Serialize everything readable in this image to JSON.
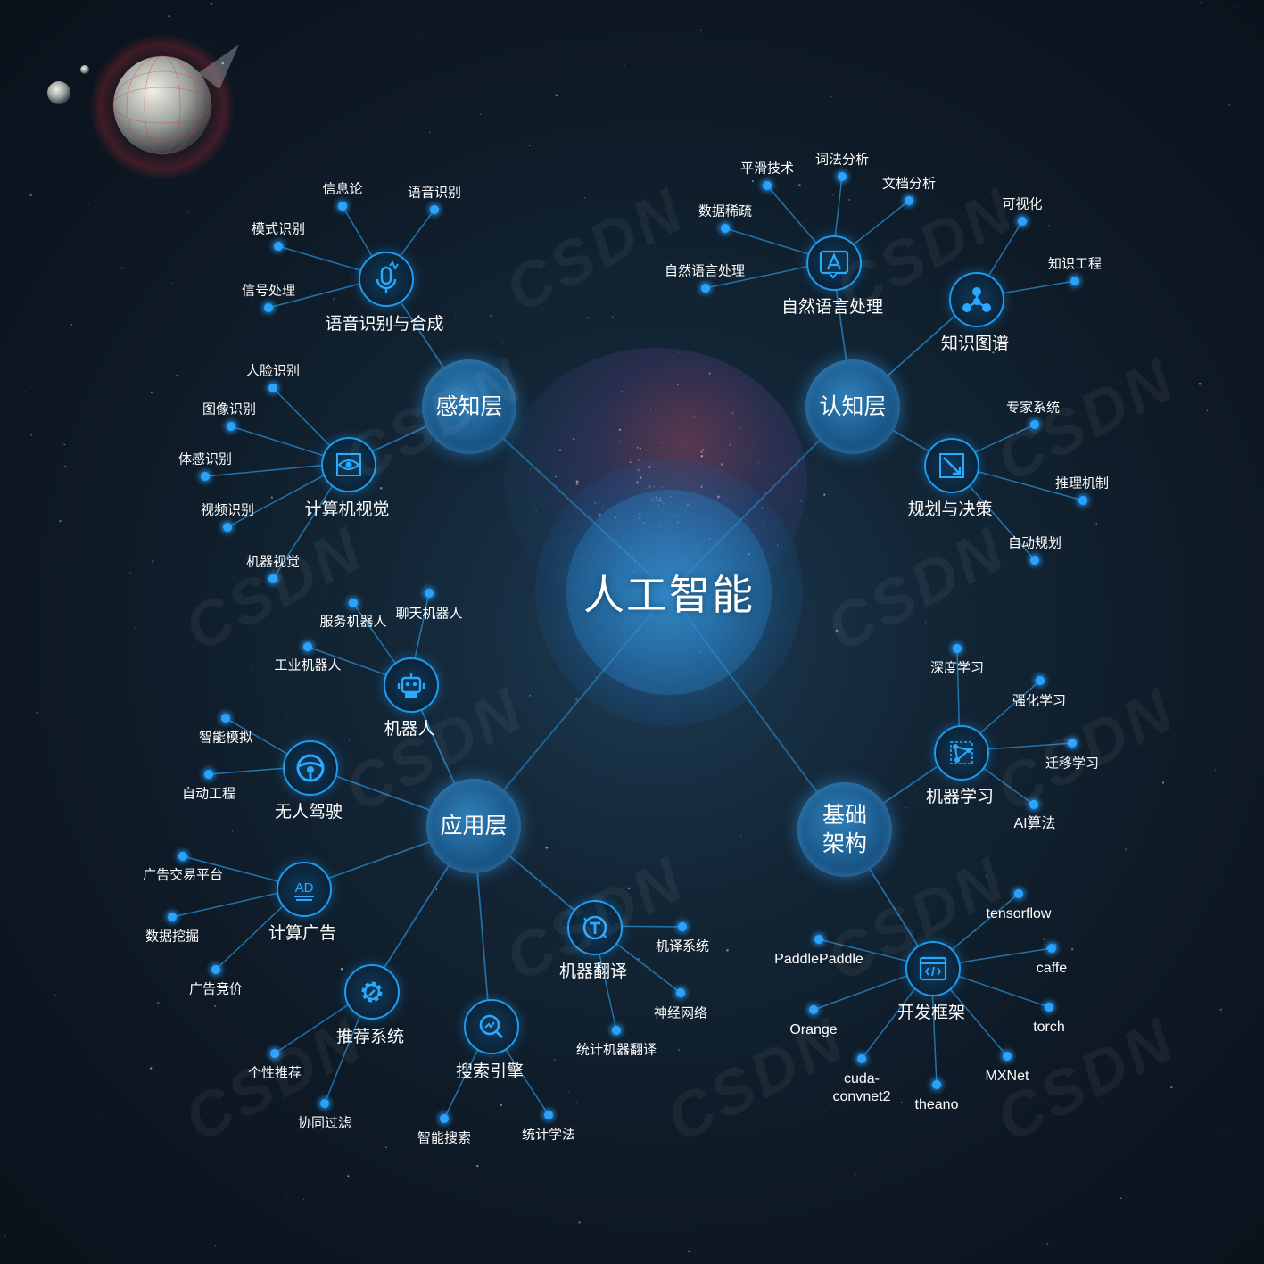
{
  "colors": {
    "accent": "#1c9bf0",
    "dot": "#2aa3ff",
    "line": "#2a8fd8",
    "background": "#0d1620"
  },
  "center": {
    "title": "人工智能"
  },
  "layers": {
    "perception": {
      "label": "感知层"
    },
    "cognition": {
      "label": "认知层"
    },
    "application": {
      "label": "应用层"
    },
    "foundation": {
      "label_line1": "基础",
      "label_line2": "架构"
    }
  },
  "groups": {
    "speech": {
      "title": "语音识别与合成",
      "icon": "mic-waveform-icon",
      "items": [
        "信息论",
        "语音识别",
        "模式识别",
        "信号处理"
      ]
    },
    "vision": {
      "title": "计算机视觉",
      "icon": "eye-scan-icon",
      "items": [
        "人脸识别",
        "图像识别",
        "体感识别",
        "视频识别",
        "机器视觉"
      ]
    },
    "nlp": {
      "title": "自然语言处理",
      "icon": "text-a-icon",
      "items": [
        "平滑技术",
        "词法分析",
        "文档分析",
        "数据稀疏",
        "自然语言处理"
      ]
    },
    "knowledge": {
      "title": "知识图谱",
      "icon": "graph-nodes-icon",
      "items": [
        "可视化",
        "知识工程"
      ]
    },
    "planning": {
      "title": "规划与决策",
      "icon": "arrow-target-icon",
      "items": [
        "专家系统",
        "推理机制",
        "自动规划"
      ]
    },
    "robot": {
      "title": "机器人",
      "icon": "robot-icon",
      "items": [
        "服务机器人",
        "聊天机器人",
        "工业机器人"
      ]
    },
    "driving": {
      "title": "无人驾驶",
      "icon": "steering-wheel-icon",
      "items": [
        "智能模拟",
        "自动工程"
      ]
    },
    "ads": {
      "title": "计算广告",
      "icon": "ad-icon",
      "icon_text": "AD",
      "items": [
        "广告交易平台",
        "数据挖掘",
        "广告竞价"
      ]
    },
    "recommend": {
      "title": "推荐系统",
      "icon": "gear-icon",
      "items": [
        "个性推荐",
        "协同过滤"
      ]
    },
    "search": {
      "title": "搜索引擎",
      "icon": "search-trend-icon",
      "items": [
        "智能搜索",
        "统计学法"
      ]
    },
    "translate": {
      "title": "机器翻译",
      "icon": "translate-t-icon",
      "items": [
        "机译系统",
        "神经网络",
        "统计机器翻译"
      ]
    },
    "ml": {
      "title": "机器学习",
      "icon": "network-nodes-icon",
      "items": [
        "深度学习",
        "强化学习",
        "迁移学习",
        "AI算法"
      ]
    },
    "frameworks": {
      "title": "开发框架",
      "icon": "code-window-icon",
      "items": [
        "tensorflow",
        "PaddlePaddle",
        "caffe",
        "Orange",
        "torch",
        "cuda-\nconvnet2",
        "theano",
        "MXNet"
      ]
    }
  },
  "watermark": "CSDN"
}
